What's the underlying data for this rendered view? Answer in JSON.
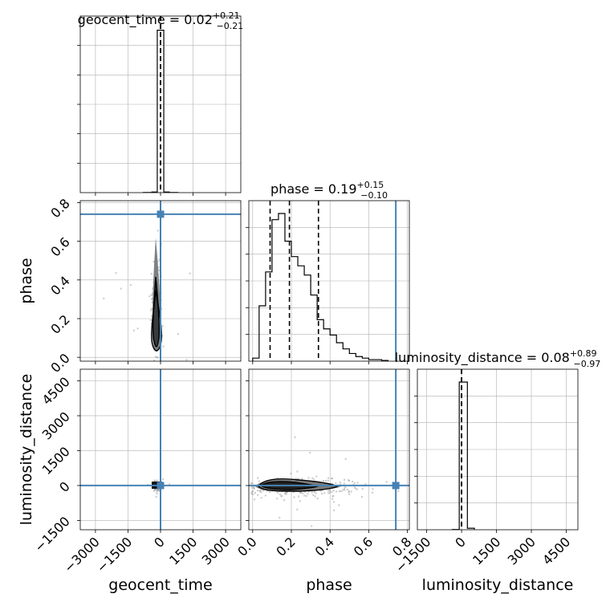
{
  "chart_data": {
    "type": "corner",
    "parameters": [
      "geocent_time",
      "phase",
      "luminosity_distance"
    ],
    "injection": {
      "geocent_time": 0,
      "phase": 0.74,
      "luminosity_distance": 0
    },
    "colors": {
      "injection": "#4682b4",
      "hist": "#000000",
      "grid": "#b0b0b0",
      "scatter": "#9a9a9a",
      "contour_fill": "#7f7f7f"
    },
    "diagonal": [
      {
        "param": "geocent_time",
        "title": {
          "prefix": "geocent_time = ",
          "median": "0.02",
          "plus": "+0.21",
          "minus": "−0.21"
        },
        "xlim": [
          -3700,
          3700
        ],
        "quantiles": [
          -0.19,
          0.02,
          0.23
        ],
        "hist": {
          "edges": [
            -800,
            -400,
            -150,
            150,
            400,
            800
          ],
          "counts": [
            0.5,
            4,
            1000,
            4,
            0.5
          ]
        }
      },
      {
        "param": "phase",
        "title": {
          "prefix": "phase = ",
          "median": "0.19",
          "plus": "+0.15",
          "minus": "−0.10"
        },
        "xlim": [
          -0.02,
          0.81
        ],
        "quantiles": [
          0.09,
          0.19,
          0.34
        ],
        "hist": {
          "edges": [
            0,
            0.0333,
            0.0667,
            0.1,
            0.1333,
            0.1667,
            0.2,
            0.2333,
            0.2667,
            0.3,
            0.3333,
            0.3667,
            0.4,
            0.4333,
            0.4667,
            0.5,
            0.5333,
            0.5667,
            0.6,
            0.6333,
            0.6667,
            0.7
          ],
          "counts": [
            0.02,
            0.36,
            0.58,
            0.92,
            0.96,
            0.78,
            0.68,
            0.62,
            0.56,
            0.43,
            0.27,
            0.21,
            0.17,
            0.12,
            0.08,
            0.05,
            0.03,
            0.02,
            0.01,
            0.01,
            0.005
          ]
        }
      },
      {
        "param": "luminosity_distance",
        "title": {
          "prefix": "luminosity_distance = ",
          "median": "0.08",
          "plus": "+0.89",
          "minus": "−0.97"
        },
        "xlim": [
          -1900,
          5000
        ],
        "quantiles": [
          -0.89,
          0.08,
          0.97
        ],
        "hist": {
          "edges": [
            -400,
            -100,
            250,
            550
          ],
          "counts": [
            1.5,
            1000,
            10
          ]
        }
      }
    ],
    "axes": {
      "geocent_time": {
        "lim": [
          -3700,
          3700
        ],
        "ticks": [
          -3000,
          -1500,
          0,
          1500,
          3000
        ],
        "tick_labels": [
          "−3000",
          "−1500",
          "0",
          "1500",
          "3000"
        ]
      },
      "phase": {
        "lim": [
          -0.02,
          0.81
        ],
        "ticks": [
          0.0,
          0.2,
          0.4,
          0.6,
          0.8
        ],
        "tick_labels": [
          "0.0",
          "0.2",
          "0.4",
          "0.6",
          "0.8"
        ]
      },
      "luminosity_distance": {
        "lim": [
          -1900,
          5000
        ],
        "ticks": [
          -1500,
          0,
          1500,
          3000,
          4500
        ],
        "tick_labels": [
          "−1500",
          "0",
          "1500",
          "3000",
          "4500"
        ]
      }
    },
    "axis_labels": {
      "geocent_time": "geocent_time",
      "phase": "phase",
      "luminosity_distance": "luminosity_distance"
    },
    "grid": true
  }
}
